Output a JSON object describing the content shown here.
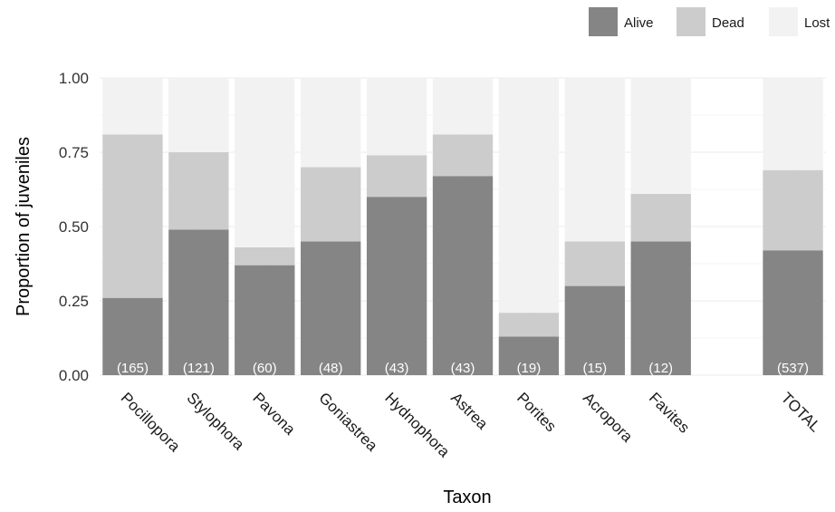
{
  "chart_data": {
    "type": "bar",
    "stacked": true,
    "title": "",
    "xlabel": "Taxon",
    "ylabel": "Proportion of juveniles",
    "ylim": [
      0,
      1
    ],
    "yticks": [
      "0.00",
      "0.25",
      "0.50",
      "0.75",
      "1.00"
    ],
    "grid": true,
    "legend_position": "top-right",
    "categories": [
      "Pocillopora",
      "Stylophora",
      "Pavona",
      "Goniastrea",
      "Hydnophora",
      "Astrea",
      "Porites",
      "Acropora",
      "Favites",
      "",
      "TOTAL"
    ],
    "counts": [
      "(165)",
      "(121)",
      "(60)",
      "(48)",
      "(43)",
      "(43)",
      "(19)",
      "(15)",
      "(12)",
      "",
      "(537)"
    ],
    "series": [
      {
        "name": "Alive",
        "color": "#858585",
        "values": [
          0.26,
          0.49,
          0.37,
          0.45,
          0.6,
          0.67,
          0.13,
          0.3,
          0.45,
          null,
          0.42
        ]
      },
      {
        "name": "Dead",
        "color": "#cccccc",
        "values": [
          0.55,
          0.26,
          0.06,
          0.25,
          0.14,
          0.14,
          0.08,
          0.15,
          0.16,
          null,
          0.27
        ]
      },
      {
        "name": "Lost",
        "color": "#f2f2f2",
        "values": [
          0.19,
          0.25,
          0.57,
          0.3,
          0.26,
          0.19,
          0.79,
          0.55,
          0.39,
          null,
          0.31
        ]
      }
    ]
  }
}
